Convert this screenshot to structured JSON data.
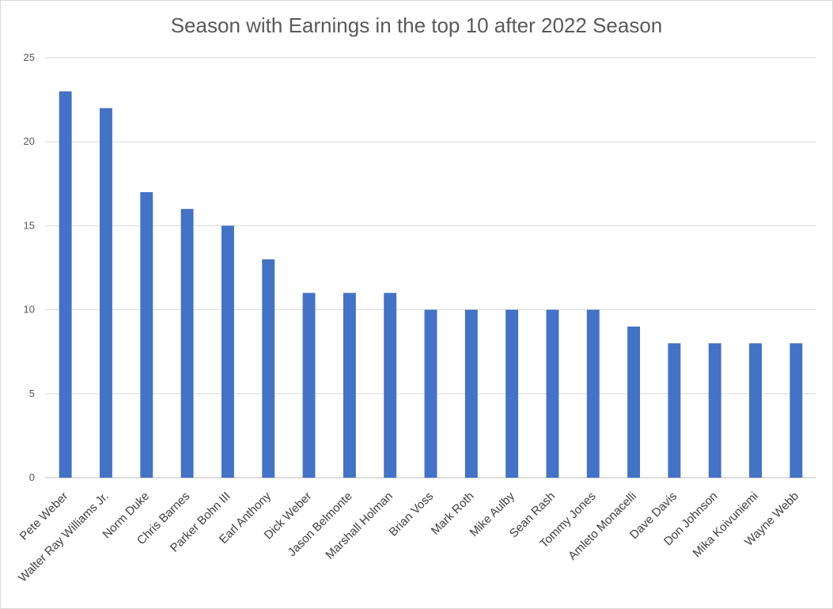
{
  "chart_data": {
    "type": "bar",
    "title": "Season with Earnings in the top 10 after 2022 Season",
    "xlabel": "",
    "ylabel": "",
    "ylim": [
      0,
      25
    ],
    "yticks": [
      0,
      5,
      10,
      15,
      20,
      25
    ],
    "grid": true,
    "legend": "none",
    "categories": [
      "Pete Weber",
      "Walter Ray Williams Jr.",
      "Norm Duke",
      "Chris Barnes",
      "Parker Bohn III",
      "Earl Anthony",
      "Dick Weber",
      "Jason Belmonte",
      "Marshall Holman",
      "Brian Voss",
      "Mark Roth",
      "Mike Aulby",
      "Sean Rash",
      "Tommy Jones",
      "Amleto Monacelli",
      "Dave Davis",
      "Don Johnson",
      "Mika Koivuniemi",
      "Wayne Webb"
    ],
    "values": [
      23,
      22,
      17,
      16,
      15,
      13,
      11,
      11,
      11,
      10,
      10,
      10,
      10,
      10,
      9,
      8,
      8,
      8,
      8
    ],
    "bar_color": "#4472c4",
    "grid_color": "#d9d9d9"
  }
}
